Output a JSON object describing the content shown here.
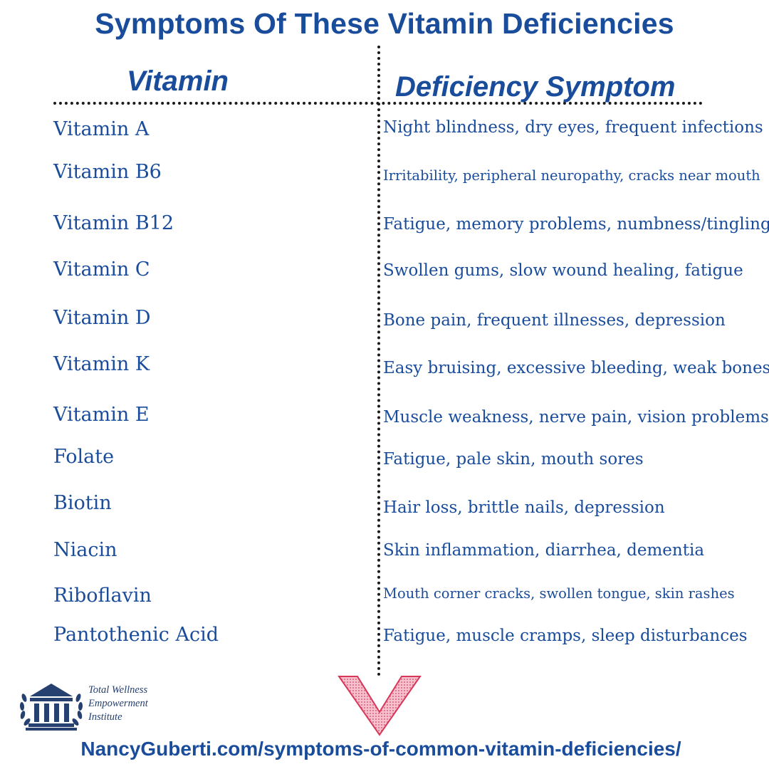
{
  "title": "Symptoms Of These Vitamin Deficiencies",
  "headers": {
    "vitamin": "Vitamin",
    "symptom": "Deficiency Symptom"
  },
  "rows": [
    {
      "vitamin": "Vitamin A",
      "symptom": "Night blindness, dry eyes, frequent infections"
    },
    {
      "vitamin": "Vitamin B6",
      "symptom": "Irritability, peripheral neuropathy, cracks near mouth"
    },
    {
      "vitamin": "Vitamin B12",
      "symptom": "Fatigue, memory problems, numbness/tingling"
    },
    {
      "vitamin": "Vitamin C",
      "symptom": "Swollen gums, slow wound healing, fatigue"
    },
    {
      "vitamin": "Vitamin D",
      "symptom": "Bone pain, frequent illnesses, depression"
    },
    {
      "vitamin": "Vitamin K",
      "symptom": "Easy bruising, excessive bleeding, weak bones"
    },
    {
      "vitamin": "Vitamin E",
      "symptom": "Muscle weakness, nerve pain, vision problems"
    },
    {
      "vitamin": "Folate",
      "symptom": "Fatigue, pale skin, mouth sores"
    },
    {
      "vitamin": "Biotin",
      "symptom": "Hair loss, brittle nails, depression"
    },
    {
      "vitamin": "Niacin",
      "symptom": "Skin inflammation, diarrhea, dementia"
    },
    {
      "vitamin": "Riboflavin",
      "symptom": "Mouth corner cracks, swollen tongue, skin rashes"
    },
    {
      "vitamin": "Pantothenic Acid",
      "symptom": "Fatigue, muscle cramps, sleep disturbances"
    }
  ],
  "logo": {
    "line1": "Total Wellness",
    "line2": "Empowerment",
    "line3": "Institute",
    "icon": "columned-building-laurel-icon"
  },
  "arrow_icon": "down-chevron-arrow-icon",
  "source_url": "NancyGuberti.com/symptoms-of-common-vitamin-deficiencies/",
  "colors": {
    "text_blue": "#1a4c9c",
    "arrow_pink": "#f1a3b3",
    "arrow_outline": "#d7385a",
    "logo_navy": "#26406f"
  }
}
